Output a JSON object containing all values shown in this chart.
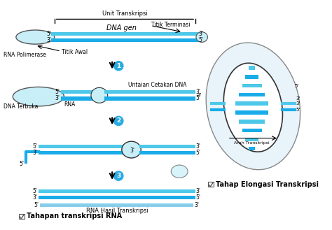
{
  "title_left": "Tahapan transkripsi RNA",
  "title_right": "Tahap Elongasi Transkripsi",
  "label_unit": "Unit Transkripsi",
  "label_dna": "DNA gen",
  "label_titik_awal": "Titik Awal",
  "label_rna_polimerase": "RNA Polimerase",
  "label_titik_terminasi": "Titik Terminasi",
  "label_dna_terbuka": "DNA Terbuka",
  "label_rna": "RNA",
  "label_untaian": "Untaian Cetakan DNA",
  "label_rna_hasil": "RNA Hasil Transkripsi",
  "cyan_light": "#87CEEB",
  "cyan_dark": "#00BFFF",
  "white": "#FFFFFF",
  "black": "#000000",
  "bg": "#FFFFFF",
  "strand_color": "#4DC8E8",
  "strand_dark": "#1AACE8"
}
